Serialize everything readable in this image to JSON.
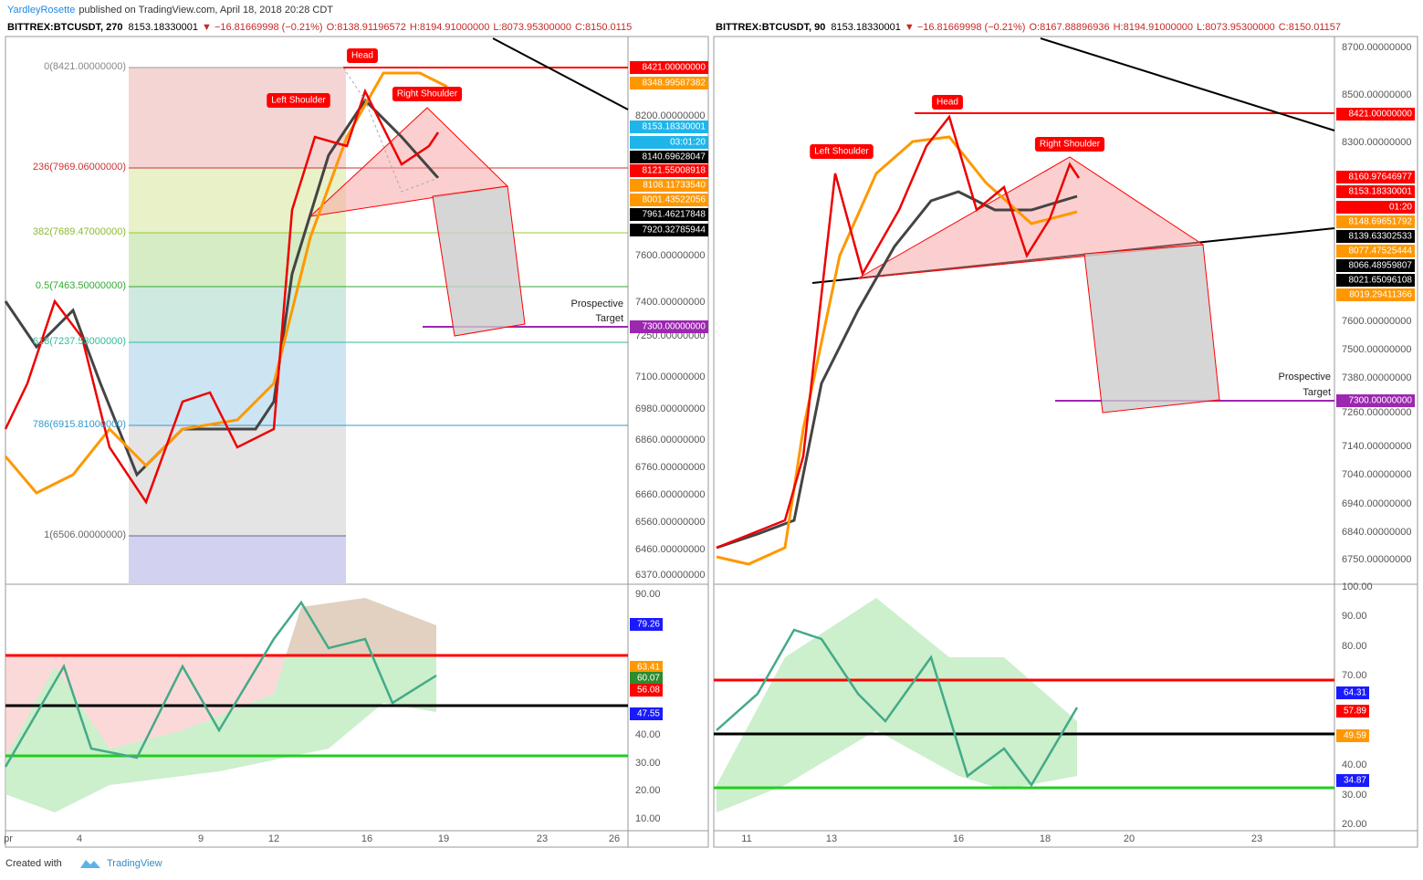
{
  "header": {
    "author": "YardleyRosette",
    "published": "published on TradingView.com, April 18, 2018 20:28 CDT"
  },
  "panels": [
    {
      "symbol": "BITTREX:BTCUSDT, 270",
      "last": "8153.18330001",
      "change": "▼ −16.81669998 (−0.21%)",
      "ohlc": [
        "O:8138.91196572",
        "H:8194.91000000",
        "L:8073.95300000",
        "C:8150.0115"
      ],
      "price_ticks": [
        "8200.00000000",
        "7600.00000000",
        "7400.00000000",
        "7250.00000000",
        "7100.00000000",
        "6980.00000000",
        "6860.00000000",
        "6760.00000000",
        "6660.00000000",
        "6560.00000000",
        "6460.00000000",
        "6370.00000000"
      ],
      "price_labels": [
        {
          "text": "8421.00000000",
          "color": "#ff0000"
        },
        {
          "text": "8348.99587382",
          "color": "#ff9800"
        },
        {
          "text": "8153.18330001",
          "color": "#1fb5ea"
        },
        {
          "text": "03:01:20",
          "color": "#1fb5ea"
        },
        {
          "text": "8140.69628047",
          "color": "#000000"
        },
        {
          "text": "8121.55008918",
          "color": "#ff0000"
        },
        {
          "text": "8108.11733540",
          "color": "#ff9800"
        },
        {
          "text": "8001.43522056",
          "color": "#ff9800"
        },
        {
          "text": "7961.46217848",
          "color": "#000000"
        },
        {
          "text": "7920.32785944",
          "color": "#000000"
        },
        {
          "text": "7300.00000000",
          "color": "#9c27b0"
        }
      ],
      "fib_levels": [
        "0(8421.00000000)",
        "236(7969.06000000)",
        "382(7689.47000000)",
        "0.5(7463.50000000)",
        "618(7237.53000000)",
        "786(6915.81000000)",
        "1(6506.00000000)"
      ],
      "annotations": {
        "head": "Head",
        "left_shoulder": "Left Shoulder",
        "right_shoulder": "Right Shoulder"
      },
      "target": [
        "Prospective",
        "Target"
      ],
      "osc_ticks": [
        "90.00",
        "40.00",
        "30.00",
        "20.00",
        "10.00"
      ],
      "osc_labels": [
        {
          "text": "79.26",
          "color": "#1a1aff"
        },
        {
          "text": "63.41",
          "color": "#ff9800"
        },
        {
          "text": "60.07",
          "color": "#2e8b2e"
        },
        {
          "text": "56.08",
          "color": "#ff0000"
        },
        {
          "text": "47.55",
          "color": "#1a1aff"
        }
      ],
      "time_ticks": [
        "pr",
        "4",
        "9",
        "12",
        "16",
        "19",
        "23",
        "26"
      ]
    },
    {
      "symbol": "BITTREX:BTCUSDT, 90",
      "last": "8153.18330001",
      "change": "▼ −16.81669998 (−0.21%)",
      "ohlc": [
        "O:8167.88896936",
        "H:8194.91000000",
        "L:8073.95300000",
        "C:8150.01157"
      ],
      "price_ticks": [
        "8700.00000000",
        "8500.00000000",
        "8300.00000000",
        "7600.00000000",
        "7500.00000000",
        "7380.00000000",
        "7260.00000000",
        "7140.00000000",
        "7040.00000000",
        "6940.00000000",
        "6840.00000000",
        "6750.00000000"
      ],
      "price_labels": [
        {
          "text": "8421.00000000",
          "color": "#ff0000"
        },
        {
          "text": "8160.97646977",
          "color": "#ff0000"
        },
        {
          "text": "8153.18330001",
          "color": "#ff0000"
        },
        {
          "text": "01:20",
          "color": "#ff0000"
        },
        {
          "text": "8148.69651792",
          "color": "#ff9800"
        },
        {
          "text": "8139.63302533",
          "color": "#000000"
        },
        {
          "text": "8077.47525444",
          "color": "#ff9800"
        },
        {
          "text": "8066.48959807",
          "color": "#000000"
        },
        {
          "text": "8021.65096108",
          "color": "#000000"
        },
        {
          "text": "8019.29411366",
          "color": "#ff9800"
        },
        {
          "text": "7300.00000000",
          "color": "#9c27b0"
        }
      ],
      "fib_levels": [],
      "annotations": {
        "head": "Head",
        "left_shoulder": "Left Shoulder",
        "right_shoulder": "Right Shoulder"
      },
      "target": [
        "Prospective",
        "Target"
      ],
      "osc_ticks": [
        "100.00",
        "90.00",
        "80.00",
        "70.00",
        "40.00",
        "30.00",
        "20.00"
      ],
      "osc_labels": [
        {
          "text": "64.31",
          "color": "#1a1aff"
        },
        {
          "text": "57.89",
          "color": "#ff0000"
        },
        {
          "text": "49.59",
          "color": "#ff9800"
        },
        {
          "text": "34.87",
          "color": "#1a1aff"
        }
      ],
      "time_ticks": [
        "11",
        "13",
        "16",
        "18",
        "20",
        "23"
      ]
    }
  ],
  "footer": {
    "created": "Created with",
    "brand": "TradingView"
  }
}
